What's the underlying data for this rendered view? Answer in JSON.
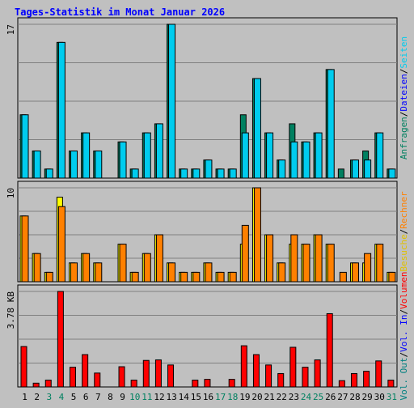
{
  "title": "Tages-Statistik im Monat Januar 2026",
  "colors": {
    "background": "#c0c0c0",
    "title": "#0000ff",
    "anfragen": "#008060",
    "dateien": "#0000ff",
    "seiten": "#00ccee",
    "besuche": "#ffff00",
    "rechner": "#ff8000",
    "vol_out": "#008080",
    "vol_in": "#0000ff",
    "volumen": "#ff0000",
    "weekend_label": "#008060",
    "weekday_label": "#000000"
  },
  "right_legend": {
    "panel1": [
      {
        "text": "Anfragen",
        "color": "#008060"
      },
      {
        "text": "/",
        "color": "#000000"
      },
      {
        "text": "Dateien",
        "color": "#0000ff"
      },
      {
        "text": "/",
        "color": "#000000"
      },
      {
        "text": "Seiten",
        "color": "#00ccee"
      }
    ],
    "panel2": [
      {
        "text": "Besuche",
        "color": "#e0c000"
      },
      {
        "text": "/",
        "color": "#000000"
      },
      {
        "text": "Rechner",
        "color": "#ff8000"
      }
    ],
    "panel3": [
      {
        "text": "Vol. Out",
        "color": "#008080"
      },
      {
        "text": "/",
        "color": "#000000"
      },
      {
        "text": "Vol. In",
        "color": "#0000ff"
      },
      {
        "text": "/",
        "color": "#000000"
      },
      {
        "text": "Volumen",
        "color": "#ff0000"
      }
    ]
  },
  "chart_data": [
    {
      "type": "bar",
      "title": "Tages-Statistik im Monat Januar 2026",
      "ylim": [
        0,
        17
      ],
      "y_max_label": "17",
      "grid": true,
      "categories": [
        "1",
        "2",
        "3",
        "4",
        "5",
        "6",
        "7",
        "8",
        "9",
        "10",
        "11",
        "12",
        "13",
        "14",
        "15",
        "16",
        "17",
        "18",
        "19",
        "20",
        "21",
        "22",
        "23",
        "24",
        "25",
        "26",
        "27",
        "28",
        "29",
        "30",
        "31"
      ],
      "series": [
        {
          "name": "Anfragen",
          "values": [
            7,
            3,
            1,
            15,
            3,
            5,
            3,
            0,
            4,
            1,
            5,
            6,
            17,
            1,
            1,
            2,
            1,
            1,
            7,
            11,
            5,
            2,
            6,
            4,
            5,
            12,
            1,
            2,
            3,
            5,
            1
          ]
        },
        {
          "name": "Dateien",
          "values": [
            7,
            3,
            1,
            15,
            3,
            5,
            3,
            0,
            4,
            1,
            5,
            6,
            17,
            1,
            1,
            2,
            1,
            1,
            5,
            11,
            5,
            2,
            4,
            4,
            5,
            12,
            0,
            2,
            2,
            5,
            1
          ]
        },
        {
          "name": "Seiten",
          "values": [
            7,
            3,
            1,
            15,
            3,
            5,
            3,
            0,
            4,
            1,
            5,
            6,
            17,
            1,
            1,
            2,
            1,
            1,
            5,
            11,
            5,
            2,
            4,
            4,
            5,
            12,
            0,
            2,
            2,
            5,
            1
          ]
        }
      ]
    },
    {
      "type": "bar",
      "ylim": [
        0,
        10
      ],
      "y_max_label": "10",
      "grid": true,
      "categories": [
        "1",
        "2",
        "3",
        "4",
        "5",
        "6",
        "7",
        "8",
        "9",
        "10",
        "11",
        "12",
        "13",
        "14",
        "15",
        "16",
        "17",
        "18",
        "19",
        "20",
        "21",
        "22",
        "23",
        "24",
        "25",
        "26",
        "27",
        "28",
        "29",
        "30",
        "31"
      ],
      "series": [
        {
          "name": "Besuche",
          "values": [
            7,
            3,
            1,
            9,
            2,
            3,
            2,
            0,
            4,
            1,
            3,
            5,
            2,
            1,
            1,
            2,
            1,
            1,
            4,
            10,
            5,
            2,
            4,
            4,
            5,
            4,
            0,
            2,
            2,
            4,
            1
          ]
        },
        {
          "name": "Rechner",
          "values": [
            7,
            3,
            1,
            8,
            2,
            3,
            2,
            0,
            4,
            1,
            3,
            5,
            2,
            1,
            1,
            2,
            1,
            1,
            6,
            10,
            5,
            2,
            5,
            4,
            5,
            4,
            1,
            2,
            3,
            4,
            1
          ]
        }
      ]
    },
    {
      "type": "bar",
      "ylim": [
        0,
        3.78
      ],
      "y_max_label": "3.78 KB",
      "grid": true,
      "categories": [
        "1",
        "2",
        "3",
        "4",
        "5",
        "6",
        "7",
        "8",
        "9",
        "10",
        "11",
        "12",
        "13",
        "14",
        "15",
        "16",
        "17",
        "18",
        "19",
        "20",
        "21",
        "22",
        "23",
        "24",
        "25",
        "26",
        "27",
        "28",
        "29",
        "30",
        "31"
      ],
      "series": [
        {
          "name": "Volumen",
          "values": [
            1.6,
            0.15,
            0.27,
            3.78,
            0.78,
            1.28,
            0.55,
            0,
            0.8,
            0.27,
            1.05,
            1.07,
            0.87,
            0,
            0.27,
            0.3,
            0,
            0.3,
            1.63,
            1.28,
            0.87,
            0.53,
            1.57,
            0.78,
            1.07,
            2.9,
            0.25,
            0.53,
            0.62,
            1.03,
            0.27
          ]
        }
      ]
    }
  ],
  "weekend_days": [
    3,
    4,
    10,
    11,
    17,
    18,
    24,
    25,
    31
  ]
}
